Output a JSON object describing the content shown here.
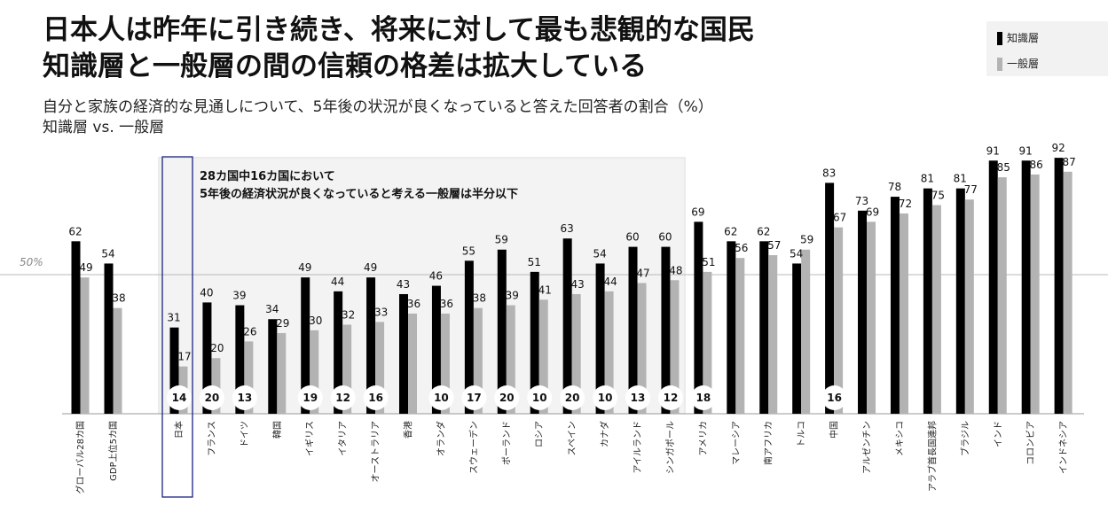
{
  "header": {
    "title_line1": "日本人は昨年に引き続き、将来に対して最も悲観的な国民",
    "title_line2": "知識層と一般層の間の信頼の格差は拡大している",
    "subtitle_line1": "自分と家族の経済的な見通しについて、5年後の状況が良くなっていると答えた回答者の割合（%）",
    "subtitle_line2": "知識層 vs. 一般層"
  },
  "legend": {
    "items": [
      {
        "label": "知識層",
        "color": "#000000"
      },
      {
        "label": "一般層",
        "color": "#b3b3b3"
      }
    ]
  },
  "annotation": {
    "line1": "28カ国中16カ国において",
    "line2": "5年後の経済状況が良くなっていると考える一般層は半分以下"
  },
  "chart_data": {
    "type": "bar",
    "reference_line": {
      "value": 50,
      "label": "50%"
    },
    "ylim": [
      0,
      100
    ],
    "grid": false,
    "legend_position": "top-right",
    "categories": [
      "グローバル28カ国",
      "GDP上位5カ国",
      "日本",
      "フランス",
      "ドイツ",
      "韓国",
      "イギリス",
      "イタリア",
      "オーストラリア",
      "香港",
      "オランダ",
      "スウェーデン",
      "ポーランド",
      "ロシア",
      "スペイン",
      "カナダ",
      "アイルランド",
      "シンガポール",
      "アメリカ",
      "マレーシア",
      "南アフリカ",
      "トルコ",
      "中国",
      "アルゼンチン",
      "メキシコ",
      "アラブ首長国連邦",
      "ブラジル",
      "インド",
      "コロンビア",
      "インドネシア"
    ],
    "series": [
      {
        "name": "知識層",
        "color": "#000000",
        "values": [
          62,
          54,
          31,
          40,
          39,
          34,
          49,
          44,
          49,
          43,
          46,
          55,
          59,
          51,
          63,
          54,
          60,
          60,
          69,
          62,
          62,
          54,
          83,
          73,
          78,
          81,
          81,
          91,
          91,
          92
        ]
      },
      {
        "name": "一般層",
        "color": "#b3b3b3",
        "values": [
          49,
          38,
          17,
          20,
          26,
          29,
          30,
          32,
          33,
          36,
          36,
          38,
          39,
          41,
          43,
          44,
          47,
          48,
          51,
          56,
          57,
          59,
          67,
          69,
          72,
          75,
          77,
          85,
          86,
          87
        ]
      }
    ],
    "gap_badges": [
      "",
      "",
      "14",
      "20",
      "13",
      "",
      "19",
      "12",
      "16",
      "",
      "10",
      "17",
      "20",
      "10",
      "20",
      "10",
      "13",
      "12",
      "18",
      "",
      "",
      "",
      "16",
      "",
      "",
      "",
      "",
      "",
      "",
      ""
    ]
  }
}
